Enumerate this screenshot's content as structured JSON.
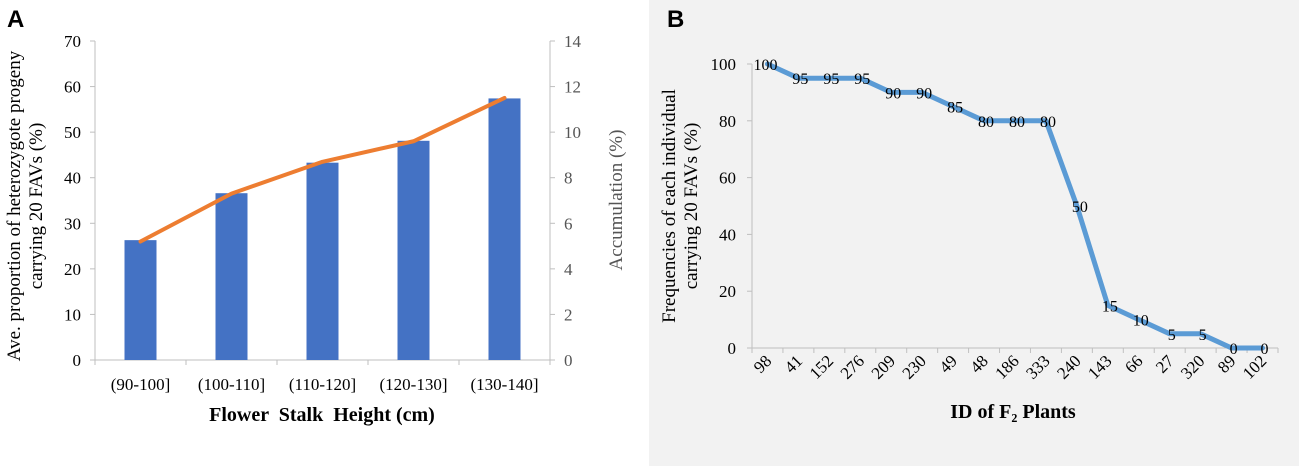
{
  "panels": {
    "a": {
      "letter": "A"
    },
    "b": {
      "letter": "B"
    }
  },
  "colors": {
    "bar": "#4472c4",
    "line_a": "#ed7d31",
    "line_b": "#5b9bd5",
    "panel_b_bg": "#f2f2f2",
    "axis": "#bfbfbf"
  },
  "chart_data": [
    {
      "type": "bar",
      "panel": "A",
      "title": "",
      "categories": [
        "(90-100]",
        "(100-110]",
        "(110-120]",
        "(120-130]",
        "(130-140]"
      ],
      "series": [
        {
          "name": "Ave. proportion of heterozygote progeny carrying 20 FAVs (%)",
          "type": "bar",
          "axis": "left",
          "values": [
            26.3,
            36.6,
            43.3,
            48.1,
            57.4
          ]
        },
        {
          "name": "Accumulation (%)",
          "type": "line",
          "axis": "right",
          "values": [
            5.2,
            7.3,
            8.7,
            9.6,
            11.5
          ]
        }
      ],
      "xlabel": "Flower  Stalk  Height (cm)",
      "ylabel_line1": "Ave. proportion of heterozygote progeny",
      "ylabel_line2": "carrying 20 FAVs (%)",
      "y2label": "Accumulation (%)",
      "ylim": [
        0,
        70
      ],
      "yticks": [
        0,
        10,
        20,
        30,
        40,
        50,
        60,
        70
      ],
      "y2lim": [
        0,
        14
      ],
      "y2ticks": [
        0,
        2,
        4,
        6,
        8,
        10,
        12,
        14
      ]
    },
    {
      "type": "line",
      "panel": "B",
      "title": "",
      "categories": [
        "98",
        "41",
        "152",
        "276",
        "209",
        "230",
        "49",
        "48",
        "186",
        "333",
        "240",
        "143",
        "66",
        "27",
        "320",
        "89",
        "102"
      ],
      "values": [
        100,
        95,
        95,
        95,
        90,
        90,
        85,
        80,
        80,
        80,
        50,
        15,
        10,
        5,
        5,
        0,
        0
      ],
      "xlabel": "ID of F₂ Plants",
      "ylabel_line1": "Frequencies of each individual",
      "ylabel_line2": "carrying 20 FAVs (%)",
      "ylim": [
        0,
        100
      ],
      "yticks": [
        0,
        20,
        40,
        60,
        80,
        100
      ]
    }
  ]
}
